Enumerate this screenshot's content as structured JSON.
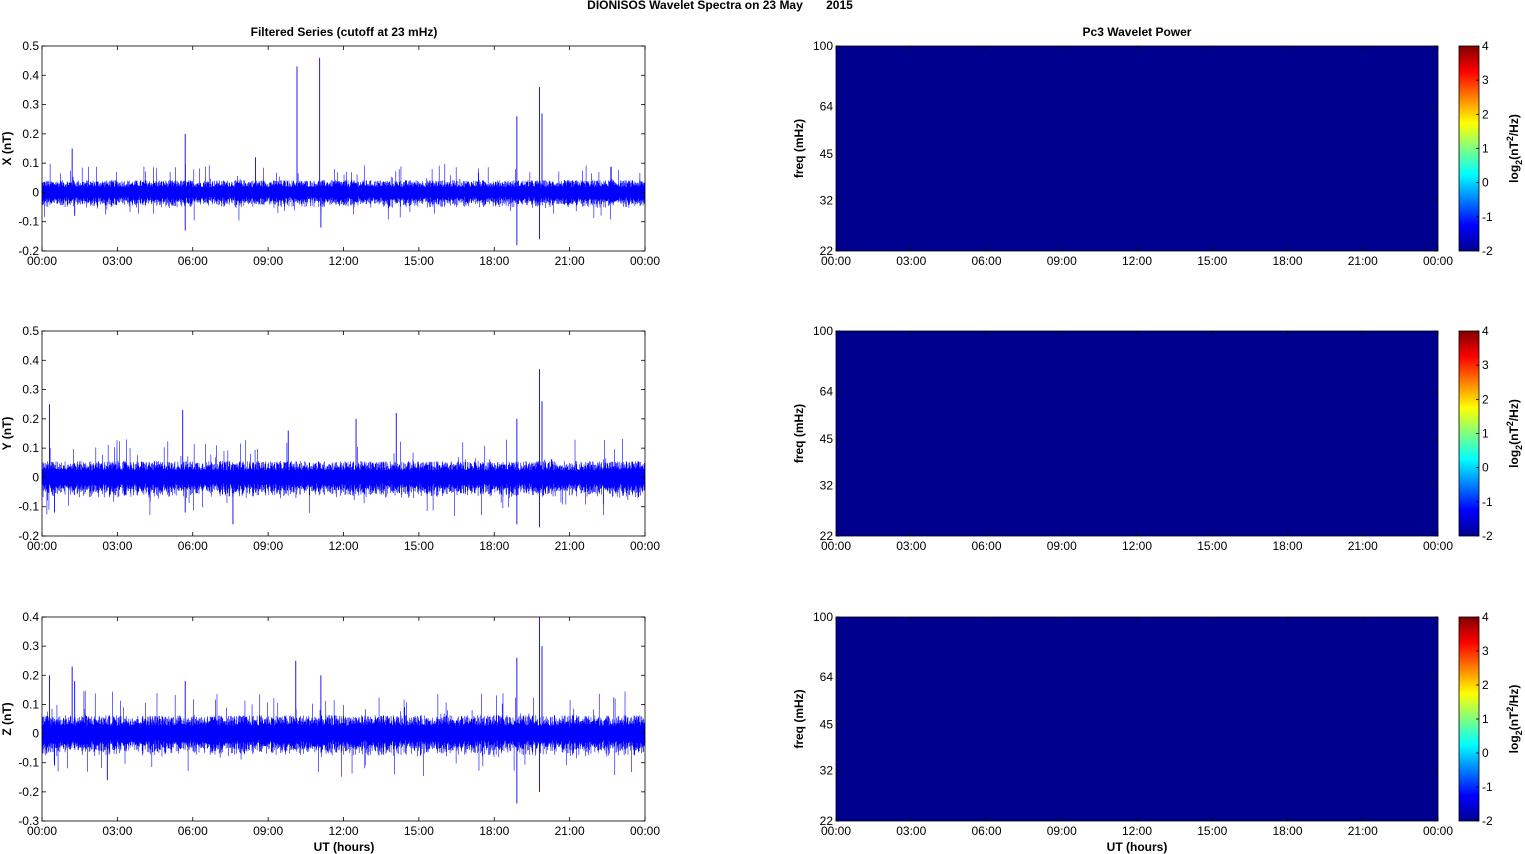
{
  "figure": {
    "suptitle": "DIONISOS Wavelet Spectra on 23 May       2015",
    "left_title": "Filtered Series (cutoff at 23 mHz)",
    "right_title": "Pc3 Wavelet Power",
    "xlabel": "UT (hours)"
  },
  "chart_data": [
    {
      "type": "line",
      "component": "X",
      "ylabel": "X (nT)",
      "xlim": [
        0,
        24
      ],
      "ylim": [
        -0.2,
        0.5
      ],
      "xticks": [
        "00:00",
        "03:00",
        "06:00",
        "09:00",
        "12:00",
        "15:00",
        "18:00",
        "21:00",
        "00:00"
      ],
      "yticks": [
        "-0.2",
        "-0.1",
        "0",
        "0.1",
        "0.2",
        "0.3",
        "0.4",
        "0.5"
      ],
      "ytick_values": [
        -0.2,
        -0.1,
        0,
        0.1,
        0.2,
        0.3,
        0.4,
        0.5
      ],
      "color": "#0000ff",
      "noise_amplitude": 0.03,
      "peaks": [
        {
          "t": 1.2,
          "v": 0.15
        },
        {
          "t": 1.3,
          "v": -0.08
        },
        {
          "t": 5.7,
          "v": 0.2
        },
        {
          "t": 5.7,
          "v": -0.13
        },
        {
          "t": 8.5,
          "v": 0.12
        },
        {
          "t": 10.15,
          "v": 0.43
        },
        {
          "t": 11.05,
          "v": 0.46
        },
        {
          "t": 11.1,
          "v": -0.12
        },
        {
          "t": 18.9,
          "v": 0.26
        },
        {
          "t": 18.9,
          "v": -0.18
        },
        {
          "t": 19.8,
          "v": 0.36
        },
        {
          "t": 19.8,
          "v": -0.16
        },
        {
          "t": 19.9,
          "v": 0.27
        }
      ]
    },
    {
      "type": "line",
      "component": "Y",
      "ylabel": "Y (nT)",
      "xlim": [
        0,
        24
      ],
      "ylim": [
        -0.2,
        0.5
      ],
      "xticks": [
        "00:00",
        "03:00",
        "06:00",
        "09:00",
        "12:00",
        "15:00",
        "18:00",
        "21:00",
        "00:00"
      ],
      "yticks": [
        "-0.2",
        "-0.1",
        "0",
        "0.1",
        "0.2",
        "0.3",
        "0.4",
        "0.5"
      ],
      "ytick_values": [
        -0.2,
        -0.1,
        0,
        0.1,
        0.2,
        0.3,
        0.4,
        0.5
      ],
      "color": "#0000ff",
      "noise_amplitude": 0.04,
      "peaks": [
        {
          "t": 0.3,
          "v": 0.25
        },
        {
          "t": 0.5,
          "v": -0.12
        },
        {
          "t": 5.6,
          "v": 0.23
        },
        {
          "t": 5.7,
          "v": -0.12
        },
        {
          "t": 7.6,
          "v": -0.16
        },
        {
          "t": 9.8,
          "v": 0.16
        },
        {
          "t": 12.5,
          "v": 0.2
        },
        {
          "t": 14.1,
          "v": 0.22
        },
        {
          "t": 18.9,
          "v": 0.2
        },
        {
          "t": 18.9,
          "v": -0.16
        },
        {
          "t": 19.8,
          "v": 0.37
        },
        {
          "t": 19.8,
          "v": -0.17
        },
        {
          "t": 19.9,
          "v": 0.26
        }
      ]
    },
    {
      "type": "line",
      "component": "Z",
      "ylabel": "Z (nT)",
      "xlim": [
        0,
        24
      ],
      "ylim": [
        -0.3,
        0.4
      ],
      "xticks": [
        "00:00",
        "03:00",
        "06:00",
        "09:00",
        "12:00",
        "15:00",
        "18:00",
        "21:00",
        "00:00"
      ],
      "yticks": [
        "-0.3",
        "-0.2",
        "-0.1",
        "0",
        "0.1",
        "0.2",
        "0.3",
        "0.4"
      ],
      "ytick_values": [
        -0.3,
        -0.2,
        -0.1,
        0,
        0.1,
        0.2,
        0.3,
        0.4
      ],
      "color": "#0000ff",
      "noise_amplitude": 0.045,
      "peaks": [
        {
          "t": 0.3,
          "v": 0.2
        },
        {
          "t": 0.5,
          "v": -0.11
        },
        {
          "t": 1.2,
          "v": 0.23
        },
        {
          "t": 1.3,
          "v": 0.18
        },
        {
          "t": 2.6,
          "v": -0.16
        },
        {
          "t": 5.7,
          "v": 0.18
        },
        {
          "t": 10.1,
          "v": 0.25
        },
        {
          "t": 11.1,
          "v": 0.2
        },
        {
          "t": 18.9,
          "v": 0.26
        },
        {
          "t": 18.9,
          "v": -0.24
        },
        {
          "t": 19.8,
          "v": 0.4
        },
        {
          "t": 19.8,
          "v": -0.2
        },
        {
          "t": 19.9,
          "v": 0.3
        }
      ]
    },
    {
      "type": "heatmap",
      "component": "X",
      "ylabel": "freq (mHz)",
      "xlim": [
        0,
        24
      ],
      "ylim": [
        22,
        100
      ],
      "yscale": "log",
      "xticks": [
        "00:00",
        "03:00",
        "06:00",
        "09:00",
        "12:00",
        "15:00",
        "18:00",
        "21:00",
        "00:00"
      ],
      "yticks": [
        "22",
        "32",
        "45",
        "64",
        "100"
      ],
      "ytick_values": [
        22,
        32,
        45,
        64,
        100
      ],
      "value": -2,
      "cmap": "jet",
      "fill_color": "#00008f",
      "clim": [
        -2,
        4
      ],
      "colorbar_label": "log2(nT2/Hz)",
      "colorbar_ticks": [
        "-2",
        "-1",
        "0",
        "1",
        "2",
        "3",
        "4"
      ]
    },
    {
      "type": "heatmap",
      "component": "Y",
      "ylabel": "freq (mHz)",
      "xlim": [
        0,
        24
      ],
      "ylim": [
        22,
        100
      ],
      "yscale": "log",
      "xticks": [
        "00:00",
        "03:00",
        "06:00",
        "09:00",
        "12:00",
        "15:00",
        "18:00",
        "21:00",
        "00:00"
      ],
      "yticks": [
        "22",
        "32",
        "45",
        "64",
        "100"
      ],
      "ytick_values": [
        22,
        32,
        45,
        64,
        100
      ],
      "value": -2,
      "cmap": "jet",
      "fill_color": "#00008f",
      "clim": [
        -2,
        4
      ],
      "colorbar_label": "log2(nT2/Hz)",
      "colorbar_ticks": [
        "-2",
        "-1",
        "0",
        "1",
        "2",
        "3",
        "4"
      ]
    },
    {
      "type": "heatmap",
      "component": "Z",
      "ylabel": "freq (mHz)",
      "xlim": [
        0,
        24
      ],
      "ylim": [
        22,
        100
      ],
      "yscale": "log",
      "xticks": [
        "00:00",
        "03:00",
        "06:00",
        "09:00",
        "12:00",
        "15:00",
        "18:00",
        "21:00",
        "00:00"
      ],
      "yticks": [
        "22",
        "32",
        "45",
        "64",
        "100"
      ],
      "ytick_values": [
        22,
        32,
        45,
        64,
        100
      ],
      "value": -2,
      "cmap": "jet",
      "fill_color": "#00008f",
      "clim": [
        -2,
        4
      ],
      "colorbar_label": "log2(nT2/Hz)",
      "colorbar_ticks": [
        "-2",
        "-1",
        "0",
        "1",
        "2",
        "3",
        "4"
      ]
    }
  ]
}
